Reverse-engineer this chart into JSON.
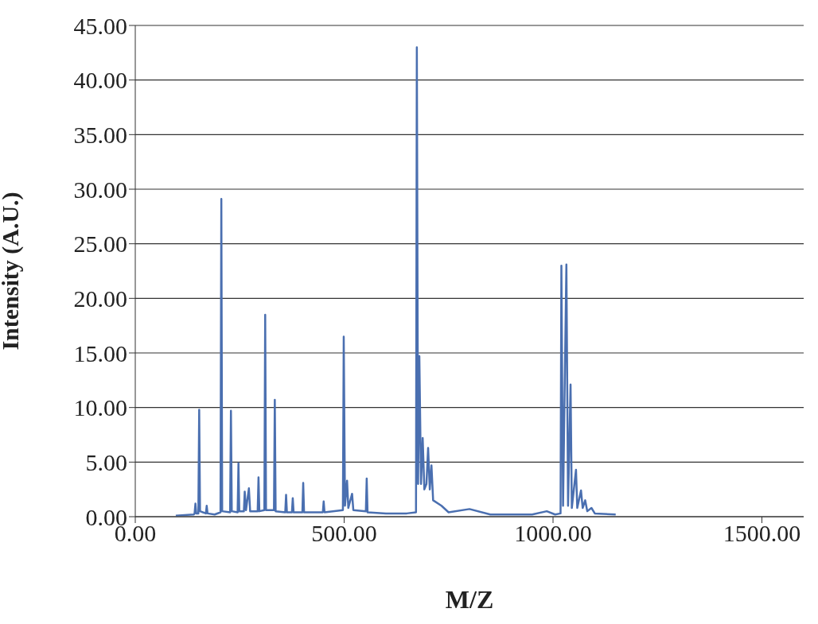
{
  "chart_data": {
    "type": "line",
    "xlabel": "M/Z",
    "ylabel": "Intensity (A.U.)",
    "x": [
      97,
      140,
      142,
      144,
      146,
      151,
      153,
      155,
      169,
      171,
      173,
      190,
      204,
      206,
      208,
      227,
      229,
      231,
      245,
      247,
      249,
      260,
      262,
      265,
      272,
      275,
      293,
      295,
      297,
      309,
      311,
      313,
      332,
      334,
      336,
      359,
      361,
      363,
      375,
      377,
      379,
      400,
      402,
      404,
      449,
      451,
      453,
      497,
      499,
      502,
      507,
      510,
      519,
      522,
      552,
      554,
      556,
      600,
      650,
      672,
      674,
      677,
      680,
      684,
      688,
      692,
      697,
      701,
      705,
      709,
      713,
      733,
      750,
      800,
      850,
      950,
      985,
      1005,
      1018,
      1020,
      1024,
      1032,
      1036,
      1042,
      1045,
      1055,
      1058,
      1067,
      1071,
      1077,
      1082,
      1092,
      1100,
      1150
    ],
    "series": [
      {
        "color": "#4a6fb0",
        "values": [
          0.1,
          0.2,
          0.3,
          1.2,
          0.3,
          0.3,
          9.8,
          0.5,
          0.3,
          1.0,
          0.3,
          0.2,
          0.4,
          29.1,
          0.5,
          0.4,
          9.7,
          0.5,
          0.4,
          4.9,
          0.5,
          0.5,
          2.3,
          0.6,
          2.6,
          0.5,
          0.5,
          3.6,
          0.5,
          0.6,
          18.5,
          0.6,
          0.6,
          10.7,
          0.5,
          0.4,
          2.0,
          0.4,
          0.4,
          1.7,
          0.4,
          0.4,
          3.1,
          0.4,
          0.4,
          1.4,
          0.4,
          0.6,
          16.5,
          1.0,
          3.3,
          0.8,
          2.1,
          0.6,
          0.5,
          3.5,
          0.4,
          0.3,
          0.3,
          0.4,
          43.0,
          3,
          14.7,
          3,
          7.2,
          2.5,
          3,
          6.3,
          2.5,
          4.7,
          1.5,
          1.0,
          0.4,
          0.7,
          0.2,
          0.2,
          0.5,
          0.2,
          0.3,
          23.0,
          1,
          23.1,
          1,
          12.1,
          0.8,
          4.3,
          0.8,
          2.4,
          0.8,
          1.5,
          0.5,
          0.8,
          0.3,
          0.2
        ]
      }
    ],
    "xlim": [
      0,
      1600
    ],
    "xticks": [
      {
        "value": 0,
        "label": "0.00"
      },
      {
        "value": 500,
        "label": "500.00"
      },
      {
        "value": 1000,
        "label": "1000.00"
      },
      {
        "value": 1500,
        "label": "1500.00"
      }
    ],
    "ylim": [
      0,
      45
    ],
    "yticks": [
      {
        "value": 0,
        "label": "0.00"
      },
      {
        "value": 5,
        "label": "5.00"
      },
      {
        "value": 10,
        "label": "10.00"
      },
      {
        "value": 15,
        "label": "15.00"
      },
      {
        "value": 20,
        "label": "20.00"
      },
      {
        "value": 25,
        "label": "25.00"
      },
      {
        "value": 30,
        "label": "30.00"
      },
      {
        "value": 35,
        "label": "35.00"
      },
      {
        "value": 40,
        "label": "40.00"
      },
      {
        "value": 45,
        "label": "45.00"
      }
    ],
    "grid": "y",
    "marker": "none",
    "line_style": "solid"
  }
}
